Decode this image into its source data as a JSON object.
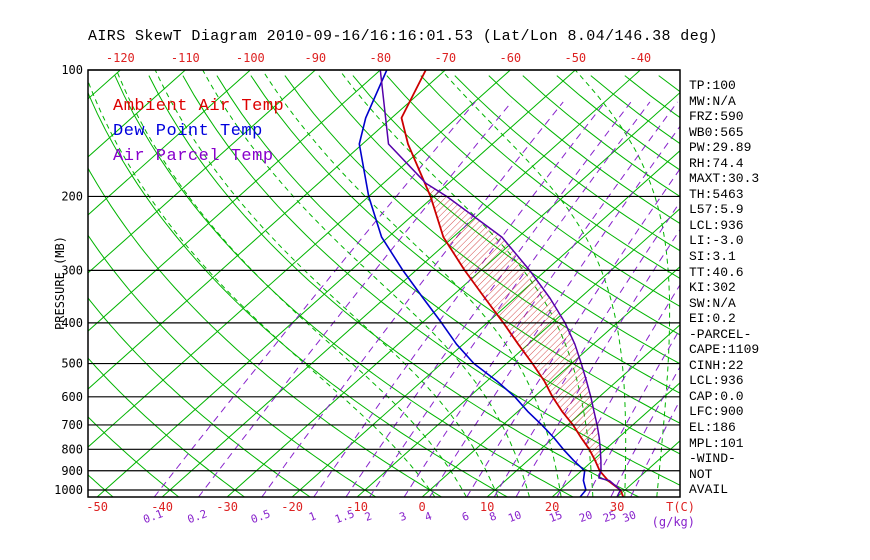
{
  "title": "AIRS SkewT Diagram 2010-09-16/16:16:01.53 (Lat/Lon 8.04/146.38 deg)",
  "legend": [
    {
      "label": "Ambient Air Temp",
      "color": "#dd0000"
    },
    {
      "label": "Dew Point Temp",
      "color": "#0000dd"
    },
    {
      "label": "Air Parcel Temp",
      "color": "#8800cc"
    }
  ],
  "axes": {
    "y_label": "PRESSURE (MB)",
    "pressure_ticks": [
      100,
      200,
      300,
      400,
      500,
      600,
      700,
      800,
      900,
      1000
    ],
    "top_temp_ticks": [
      -120,
      -110,
      -100,
      -90,
      -80,
      -70,
      -60,
      -50,
      -40
    ],
    "bottom_temp_ticks": [
      -50,
      -40,
      -30,
      -20,
      -10,
      0,
      10,
      20,
      30
    ],
    "bottom_temp_unit": "T(C)",
    "mixing_ratio_ticks": [
      0.1,
      0.2,
      0.5,
      1,
      1.5,
      2,
      3,
      4,
      6,
      8,
      10,
      15,
      20,
      25,
      30
    ],
    "mixing_ratio_unit": "(g/kg)"
  },
  "indices": [
    "TP:100",
    "MW:N/A",
    "FRZ:590",
    "WB0:565",
    "PW:29.89",
    "RH:74.4",
    "MAXT:30.3",
    "TH:5463",
    "L57:5.9",
    "LCL:936",
    "LI:-3.0",
    "SI:3.1",
    "TT:40.6",
    "KI:302",
    "SW:N/A",
    "EI:0.2",
    "-PARCEL-",
    "CAPE:1109",
    "CINH:22",
    "LCL:936",
    "CAP:0.0",
    "LFC:900",
    "EL:186",
    "MPL:101",
    "-WIND-",
    "NOT",
    "AVAIL"
  ],
  "colors": {
    "background": "#ffffff",
    "grid_green": "#00b400",
    "grid_purple": "#8822cc",
    "temp_red": "#dd2222",
    "hatch": "#cc2222",
    "frame": "#000000",
    "text": "#000000"
  },
  "chart_data": {
    "type": "line",
    "variant": "skew-t-log-p",
    "title": "AIRS SkewT Diagram 2010-09-16/16:16:01.53 (Lat/Lon 8.04/146.38 deg)",
    "xlabel": "T(C)",
    "ylabel": "PRESSURE (MB)",
    "y_scale": "log",
    "pressure_range_mb": [
      100,
      1040
    ],
    "top_axis_temp_c": [
      -120,
      -110,
      -100,
      -90,
      -80,
      -70,
      -60,
      -50,
      -40
    ],
    "bottom_axis_temp_c": [
      -50,
      -40,
      -30,
      -20,
      -10,
      0,
      10,
      20,
      30
    ],
    "grid": {
      "isotherm_step_c": 10,
      "dry_adiabat_step_c": 10,
      "moist_adiabats_c": [
        0,
        5,
        10,
        15,
        20,
        25,
        30,
        35,
        40
      ],
      "mixing_ratio_g_kg": [
        0.1,
        0.2,
        0.5,
        1,
        1.5,
        2,
        3,
        4,
        6,
        8,
        10,
        15,
        20,
        25,
        30
      ]
    },
    "series": [
      {
        "name": "Ambient Air Temp",
        "color": "#cc0000",
        "pressure_mb": [
          1040,
          1000,
          950,
          900,
          850,
          800,
          750,
          700,
          650,
          600,
          550,
          500,
          450,
          400,
          350,
          300,
          250,
          200,
          150,
          130,
          100
        ],
        "temp_c": [
          31.0,
          29.3,
          25.8,
          22.8,
          20.3,
          17.5,
          14.2,
          10.8,
          6.8,
          2.8,
          -1.2,
          -6.0,
          -11.5,
          -17.5,
          -24.5,
          -32.5,
          -41.5,
          -50.5,
          -63.0,
          -68.5,
          -73.0
        ]
      },
      {
        "name": "Dew Point Temp",
        "color": "#0000cc",
        "pressure_mb": [
          1040,
          1000,
          950,
          900,
          850,
          800,
          750,
          700,
          650,
          600,
          550,
          500,
          450,
          400,
          350,
          300,
          250,
          200,
          150,
          130,
          100
        ],
        "temp_c": [
          24.3,
          24.0,
          22.0,
          20.5,
          17.0,
          13.5,
          10.0,
          6.0,
          1.5,
          -3.0,
          -8.5,
          -15.0,
          -21.0,
          -27.0,
          -34.0,
          -42.0,
          -51.0,
          -60.0,
          -70.5,
          -74.0,
          -79.0
        ]
      },
      {
        "name": "Air Parcel Temp",
        "color": "#5500aa",
        "pressure_mb": [
          1040,
          1000,
          950,
          936,
          900,
          850,
          800,
          750,
          700,
          650,
          600,
          550,
          500,
          450,
          400,
          350,
          300,
          250,
          200,
          186,
          150,
          100
        ],
        "temp_c": [
          30.0,
          29.3,
          26.0,
          23.9,
          23.0,
          21.2,
          19.2,
          17.0,
          14.5,
          11.7,
          8.7,
          5.3,
          1.5,
          -2.8,
          -8.0,
          -14.5,
          -22.5,
          -32.5,
          -48.0,
          -53.5,
          -66.0,
          -80.0
        ]
      }
    ],
    "cape_hatch_between": [
      "Air Parcel Temp",
      "Ambient Air Temp"
    ],
    "cape_hatch_pressure_range_mb": [
      906,
      185
    ],
    "annotations": {
      "lcl_mb": 936,
      "lfc_mb": 900,
      "el_mb": 186,
      "cape_j_kg": 1109,
      "cinh_j_kg": 22
    }
  }
}
